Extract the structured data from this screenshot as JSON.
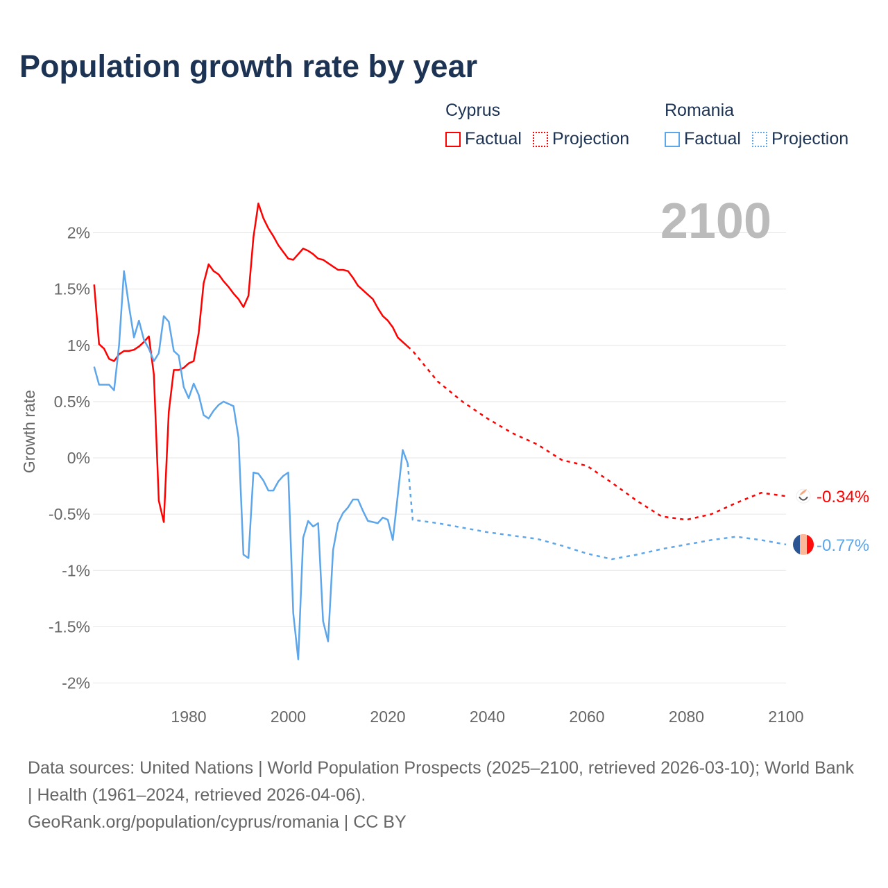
{
  "title": "Population growth rate by year",
  "legend": [
    {
      "group": "Cyprus",
      "items": [
        "Factual",
        "Projection"
      ],
      "color": "#ff0000"
    },
    {
      "group": "Romania",
      "items": [
        "Factual",
        "Projection"
      ],
      "color": "#5ea6ea"
    }
  ],
  "year_label": "2100",
  "footer": {
    "sources": "Data sources: United Nations | World Population Prospects (2025–2100, retrieved 2026-03-10); World Bank | Health (1961–2024, retrieved 2026-04-06).",
    "credit": "GeoRank.org/population/cyprus/romania | CC BY"
  },
  "chart_data": {
    "type": "line",
    "title": "Population growth rate by year",
    "xlabel": "",
    "ylabel": "Growth rate",
    "xlim": [
      1961,
      2100
    ],
    "ylim": [
      -2,
      2.3
    ],
    "grid": true,
    "legend_position": "top-right",
    "x_ticks": [
      1980,
      2000,
      2020,
      2040,
      2060,
      2080,
      2100
    ],
    "x_tick_labels": [
      "1980",
      "2000",
      "2020",
      "2040",
      "2060",
      "2080",
      "2100"
    ],
    "y_ticks": [
      2,
      1.5,
      1,
      0.5,
      0,
      -0.5,
      -1,
      -1.5,
      -2
    ],
    "y_tick_labels": [
      "2%",
      "1.5%",
      "1%",
      "0.5%",
      "0%",
      "-0.5%",
      "-1%",
      "-1.5%",
      "-2%"
    ],
    "series": [
      {
        "name": "Cyprus",
        "color": "#ff0000",
        "end_label": "-0.34%",
        "flag": "cyprus-flag",
        "factual": {
          "x": [
            1961,
            1962,
            1963,
            1964,
            1965,
            1966,
            1967,
            1968,
            1969,
            1970,
            1971,
            1972,
            1973,
            1974,
            1975,
            1976,
            1977,
            1978,
            1979,
            1980,
            1981,
            1982,
            1983,
            1984,
            1985,
            1986,
            1987,
            1988,
            1989,
            1990,
            1991,
            1992,
            1993,
            1994,
            1995,
            1996,
            1997,
            1998,
            1999,
            2000,
            2001,
            2002,
            2003,
            2004,
            2005,
            2006,
            2007,
            2008,
            2009,
            2010,
            2011,
            2012,
            2013,
            2014,
            2015,
            2016,
            2017,
            2018,
            2019,
            2020,
            2021,
            2022,
            2023,
            2024
          ],
          "y": [
            1.54,
            1.01,
            0.97,
            0.88,
            0.86,
            0.92,
            0.95,
            0.95,
            0.96,
            0.99,
            1.03,
            1.08,
            0.74,
            -0.38,
            -0.57,
            0.41,
            0.78,
            0.78,
            0.8,
            0.84,
            0.86,
            1.11,
            1.55,
            1.72,
            1.66,
            1.63,
            1.57,
            1.52,
            1.46,
            1.41,
            1.34,
            1.44,
            1.96,
            2.26,
            2.13,
            2.04,
            1.97,
            1.89,
            1.83,
            1.77,
            1.76,
            1.81,
            1.86,
            1.84,
            1.81,
            1.77,
            1.76,
            1.73,
            1.7,
            1.67,
            1.67,
            1.66,
            1.6,
            1.53,
            1.49,
            1.45,
            1.41,
            1.33,
            1.26,
            1.22,
            1.16,
            1.07,
            1.03,
            0.99
          ]
        },
        "projection": {
          "x": [
            2024,
            2025,
            2030,
            2035,
            2040,
            2045,
            2050,
            2055,
            2060,
            2065,
            2070,
            2075,
            2080,
            2085,
            2090,
            2095,
            2100
          ],
          "y": [
            0.99,
            0.95,
            0.68,
            0.5,
            0.35,
            0.22,
            0.12,
            -0.02,
            -0.07,
            -0.22,
            -0.38,
            -0.52,
            -0.55,
            -0.5,
            -0.4,
            -0.31,
            -0.34
          ]
        }
      },
      {
        "name": "Romania",
        "color": "#5ea6ea",
        "end_label": "-0.77%",
        "flag": "romania-flag",
        "factual": {
          "x": [
            1961,
            1962,
            1963,
            1964,
            1965,
            1966,
            1967,
            1968,
            1969,
            1970,
            1971,
            1972,
            1973,
            1974,
            1975,
            1976,
            1977,
            1978,
            1979,
            1980,
            1981,
            1982,
            1983,
            1984,
            1985,
            1986,
            1987,
            1988,
            1989,
            1990,
            1991,
            1992,
            1993,
            1994,
            1995,
            1996,
            1997,
            1998,
            1999,
            2000,
            2001,
            2002,
            2003,
            2004,
            2005,
            2006,
            2007,
            2008,
            2009,
            2010,
            2011,
            2012,
            2013,
            2014,
            2015,
            2016,
            2017,
            2018,
            2019,
            2020,
            2021,
            2022,
            2023,
            2024
          ],
          "y": [
            0.81,
            0.65,
            0.65,
            0.65,
            0.6,
            1.0,
            1.66,
            1.35,
            1.07,
            1.22,
            1.05,
            0.97,
            0.86,
            0.93,
            1.26,
            1.21,
            0.95,
            0.91,
            0.63,
            0.53,
            0.66,
            0.56,
            0.38,
            0.35,
            0.42,
            0.47,
            0.5,
            0.48,
            0.46,
            0.18,
            -0.86,
            -0.89,
            -0.13,
            -0.14,
            -0.2,
            -0.29,
            -0.29,
            -0.21,
            -0.16,
            -0.13,
            -1.38,
            -1.79,
            -0.71,
            -0.56,
            -0.61,
            -0.58,
            -1.45,
            -1.63,
            -0.82,
            -0.58,
            -0.49,
            -0.44,
            -0.37,
            -0.37,
            -0.47,
            -0.56,
            -0.57,
            -0.58,
            -0.53,
            -0.55,
            -0.73,
            -0.33,
            0.07,
            -0.05
          ]
        },
        "projection": {
          "x": [
            2024,
            2025,
            2030,
            2035,
            2040,
            2045,
            2050,
            2055,
            2060,
            2065,
            2070,
            2075,
            2080,
            2085,
            2090,
            2095,
            2100
          ],
          "y": [
            -0.05,
            -0.55,
            -0.58,
            -0.62,
            -0.66,
            -0.69,
            -0.72,
            -0.78,
            -0.85,
            -0.9,
            -0.86,
            -0.81,
            -0.77,
            -0.73,
            -0.7,
            -0.73,
            -0.77
          ]
        }
      }
    ]
  }
}
